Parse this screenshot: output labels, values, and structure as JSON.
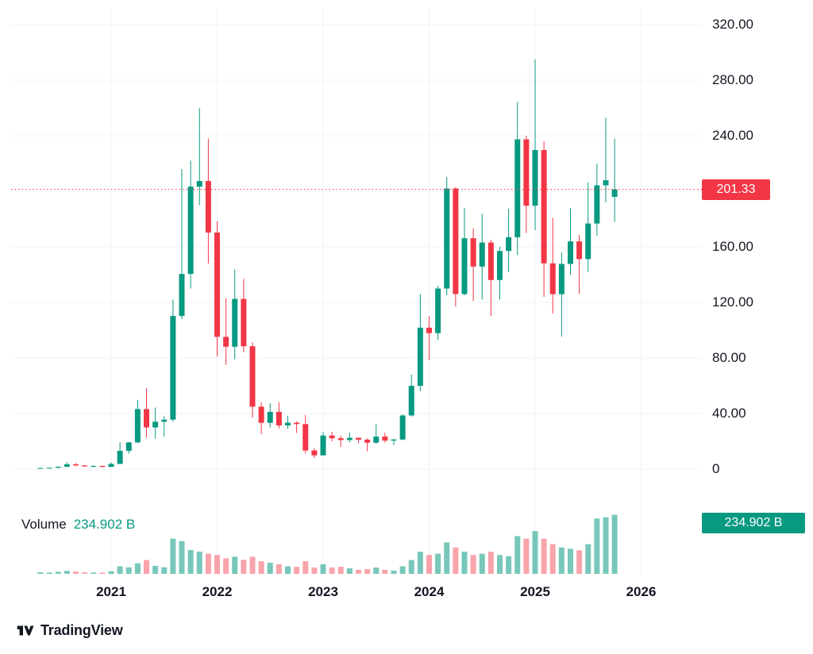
{
  "colors": {
    "up": "#089981",
    "down": "#f23645",
    "vol_up": "rgba(8,153,129,0.55)",
    "vol_down": "rgba(242,54,69,0.45)",
    "grid": "#f0f3fa",
    "price_line": "#f23645",
    "price_badge_bg": "#f23645",
    "volume_badge_bg": "#089981",
    "text": "#131722"
  },
  "price_scale": {
    "labels": [
      {
        "text": "320.00",
        "price": 320
      },
      {
        "text": "280.00",
        "price": 280
      },
      {
        "text": "240.00",
        "price": 240
      },
      {
        "text": "160.00",
        "price": 160
      },
      {
        "text": "120.00",
        "price": 120
      },
      {
        "text": "80.00",
        "price": 80
      },
      {
        "text": "40.00",
        "price": 40
      },
      {
        "text": "0",
        "price": 0
      }
    ]
  },
  "price_line": {
    "value": 201.33,
    "label": "201.33"
  },
  "volume_pane": {
    "title": "Volume",
    "value": "234.902 B",
    "badge": "234.902 B",
    "current_b": 234.902
  },
  "time_axis": {
    "years": [
      {
        "label": "2021",
        "year": 2021
      },
      {
        "label": "2022",
        "year": 2022
      },
      {
        "label": "2023",
        "year": 2023
      },
      {
        "label": "2024",
        "year": 2024
      },
      {
        "label": "2025",
        "year": 2025
      },
      {
        "label": "2026",
        "year": 2026
      }
    ]
  },
  "footer": {
    "brand": "TradingView"
  },
  "chart_data": {
    "type": "candlestick",
    "interval": "monthly",
    "price_axis": {
      "min": 0,
      "max": 320,
      "tick_step": 40,
      "side": "right"
    },
    "volume_axis_max_b": 240,
    "last_price": 201.33,
    "last_volume_b": 234.902,
    "grid": true,
    "price_line_dotted": true,
    "columns": [
      "time",
      "open",
      "high",
      "low",
      "close",
      "volume_b"
    ],
    "candles": [
      [
        "2020-05",
        0.6,
        0.95,
        0.45,
        0.78,
        6
      ],
      [
        "2020-06",
        0.78,
        1.05,
        0.6,
        0.92,
        5
      ],
      [
        "2020-07",
        0.92,
        1.9,
        0.7,
        1.62,
        8
      ],
      [
        "2020-08",
        1.62,
        4.9,
        1.5,
        3.4,
        12
      ],
      [
        "2020-09",
        3.4,
        4.3,
        2.1,
        2.6,
        9
      ],
      [
        "2020-10",
        2.6,
        2.9,
        1.5,
        1.9,
        6
      ],
      [
        "2020-11",
        1.9,
        2.7,
        1.2,
        2.25,
        5
      ],
      [
        "2020-12",
        2.25,
        2.4,
        1.3,
        1.52,
        5
      ],
      [
        "2021-01",
        1.52,
        4.7,
        1.45,
        3.72,
        10
      ],
      [
        "2021-02",
        3.72,
        19.4,
        3.6,
        13.1,
        30
      ],
      [
        "2021-03",
        13.1,
        19.6,
        11.1,
        19.2,
        26
      ],
      [
        "2021-04",
        19.2,
        49.9,
        18.6,
        43.2,
        42
      ],
      [
        "2021-05",
        43.2,
        58.3,
        22.6,
        30.0,
        55
      ],
      [
        "2021-06",
        30.0,
        44.3,
        21.9,
        34.1,
        32
      ],
      [
        "2021-07",
        34.1,
        38.0,
        23.4,
        35.6,
        26
      ],
      [
        "2021-08",
        35.6,
        122.0,
        33.9,
        110.2,
        140
      ],
      [
        "2021-09",
        110.2,
        216.0,
        108.0,
        140.5,
        130
      ],
      [
        "2021-10",
        140.5,
        222.0,
        130.0,
        203.3,
        95
      ],
      [
        "2021-11",
        203.3,
        259.9,
        190.1,
        207.4,
        88
      ],
      [
        "2021-12",
        207.4,
        238.0,
        148.0,
        170.3,
        80
      ],
      [
        "2022-01",
        170.3,
        178.5,
        81.0,
        95.2,
        75
      ],
      [
        "2022-02",
        95.2,
        123.0,
        75.0,
        88.1,
        62
      ],
      [
        "2022-03",
        88.1,
        143.6,
        79.0,
        122.5,
        68
      ],
      [
        "2022-04",
        122.5,
        136.9,
        84.1,
        88.4,
        56
      ],
      [
        "2022-05",
        88.4,
        91.2,
        37.1,
        44.9,
        68
      ],
      [
        "2022-06",
        44.9,
        48.2,
        25.2,
        33.3,
        50
      ],
      [
        "2022-07",
        33.3,
        47.3,
        29.9,
        41.2,
        44
      ],
      [
        "2022-08",
        41.2,
        48.1,
        29.3,
        31.4,
        38
      ],
      [
        "2022-09",
        31.4,
        38.4,
        29.1,
        33.4,
        30
      ],
      [
        "2022-10",
        33.4,
        34.4,
        26.0,
        32.4,
        28
      ],
      [
        "2022-11",
        32.4,
        38.9,
        11.2,
        13.4,
        50
      ],
      [
        "2022-12",
        13.4,
        14.9,
        8.0,
        9.9,
        25
      ],
      [
        "2023-01",
        9.9,
        26.8,
        9.7,
        24.1,
        38
      ],
      [
        "2023-02",
        24.1,
        26.9,
        20.0,
        22.2,
        25
      ],
      [
        "2023-03",
        22.2,
        23.9,
        15.9,
        20.9,
        28
      ],
      [
        "2023-04",
        20.9,
        26.2,
        19.2,
        22.5,
        22
      ],
      [
        "2023-05",
        22.5,
        22.9,
        18.7,
        21.2,
        16
      ],
      [
        "2023-06",
        21.2,
        22.1,
        12.8,
        19.0,
        19
      ],
      [
        "2023-07",
        19.0,
        32.3,
        18.1,
        23.4,
        25
      ],
      [
        "2023-08",
        23.4,
        26.1,
        19.1,
        20.5,
        16
      ],
      [
        "2023-09",
        20.5,
        21.6,
        17.3,
        21.3,
        13
      ],
      [
        "2023-10",
        21.3,
        39.4,
        20.7,
        38.6,
        30
      ],
      [
        "2023-11",
        38.6,
        68.0,
        37.8,
        59.9,
        55
      ],
      [
        "2023-12",
        59.9,
        126.0,
        56.0,
        101.8,
        88
      ],
      [
        "2024-01",
        101.8,
        110.0,
        78.3,
        97.9,
        75
      ],
      [
        "2024-02",
        97.9,
        132.0,
        93.0,
        130.0,
        80
      ],
      [
        "2024-03",
        130.0,
        210.2,
        125.1,
        202.0,
        125
      ],
      [
        "2024-04",
        202.0,
        203.0,
        116.9,
        126.0,
        105
      ],
      [
        "2024-05",
        126.0,
        188.0,
        125.1,
        166.2,
        88
      ],
      [
        "2024-06",
        166.2,
        173.3,
        121.0,
        145.8,
        75
      ],
      [
        "2024-07",
        145.8,
        183.8,
        122.0,
        163.1,
        80
      ],
      [
        "2024-08",
        163.1,
        165.0,
        110.0,
        136.1,
        88
      ],
      [
        "2024-09",
        136.1,
        160.0,
        122.1,
        157.0,
        75
      ],
      [
        "2024-10",
        157.0,
        187.3,
        142.0,
        166.9,
        70
      ],
      [
        "2024-11",
        166.9,
        264.4,
        154.1,
        237.4,
        150
      ],
      [
        "2024-12",
        237.4,
        240.0,
        170.0,
        189.6,
        140
      ],
      [
        "2025-01",
        189.6,
        295.0,
        172.0,
        229.7,
        170
      ],
      [
        "2025-02",
        229.7,
        236.0,
        124.0,
        148.1,
        140
      ],
      [
        "2025-03",
        148.1,
        180.9,
        112.0,
        125.9,
        118
      ],
      [
        "2025-04",
        125.9,
        156.0,
        95.2,
        147.7,
        105
      ],
      [
        "2025-05",
        147.7,
        187.7,
        139.9,
        163.9,
        100
      ],
      [
        "2025-06",
        163.9,
        168.5,
        126.1,
        151.2,
        94
      ],
      [
        "2025-07",
        151.2,
        206.3,
        142.0,
        176.8,
        118
      ],
      [
        "2025-08",
        176.8,
        219.9,
        168.0,
        204.3,
        220
      ],
      [
        "2025-09",
        204.3,
        253.0,
        192.0,
        207.9,
        225
      ],
      [
        "2025-10",
        196.0,
        238.0,
        178.0,
        201.33,
        234.902
      ]
    ]
  }
}
